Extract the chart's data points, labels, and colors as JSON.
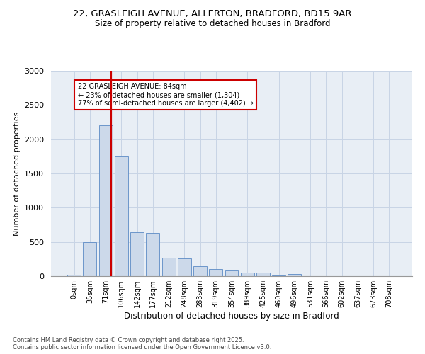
{
  "title_line1": "22, GRASLEIGH AVENUE, ALLERTON, BRADFORD, BD15 9AR",
  "title_line2": "Size of property relative to detached houses in Bradford",
  "xlabel": "Distribution of detached houses by size in Bradford",
  "ylabel": "Number of detached properties",
  "categories": [
    "0sqm",
    "35sqm",
    "71sqm",
    "106sqm",
    "142sqm",
    "177sqm",
    "212sqm",
    "248sqm",
    "283sqm",
    "319sqm",
    "354sqm",
    "389sqm",
    "425sqm",
    "460sqm",
    "496sqm",
    "531sqm",
    "566sqm",
    "602sqm",
    "637sqm",
    "673sqm",
    "708sqm"
  ],
  "values": [
    20,
    500,
    2200,
    1750,
    640,
    630,
    270,
    255,
    140,
    100,
    80,
    55,
    50,
    10,
    30,
    5,
    2,
    0,
    0,
    0,
    0
  ],
  "bar_color": "#ccd9ea",
  "bar_edge_color": "#5b8ac5",
  "grid_color": "#c8d4e5",
  "background_color": "#e8eef5",
  "red_line_color": "#cc0000",
  "annotation_text": "22 GRASLEIGH AVENUE: 84sqm\n← 23% of detached houses are smaller (1,304)\n77% of semi-detached houses are larger (4,402) →",
  "annotation_box_color": "#cc0000",
  "ylim": [
    0,
    3000
  ],
  "yticks": [
    0,
    500,
    1000,
    1500,
    2000,
    2500,
    3000
  ],
  "footer_line1": "Contains HM Land Registry data © Crown copyright and database right 2025.",
  "footer_line2": "Contains public sector information licensed under the Open Government Licence v3.0."
}
